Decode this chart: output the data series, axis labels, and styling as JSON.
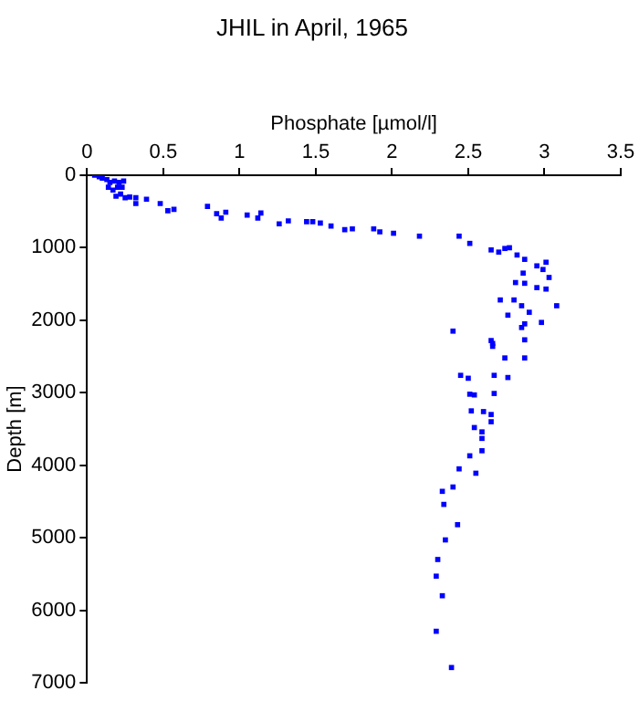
{
  "chart_data": {
    "type": "scatter",
    "title": "JHIL in April, 1965",
    "xlabel": "Phosphate [µmol/l]",
    "ylabel": "Depth [m]",
    "xlim": [
      0,
      3.5
    ],
    "xticks": [
      0,
      0.5,
      1,
      1.5,
      2,
      2.5,
      3,
      3.5
    ],
    "ylim": [
      7000,
      0
    ],
    "yticks": [
      0,
      1000,
      2000,
      3000,
      4000,
      5000,
      6000,
      7000
    ],
    "grid": false,
    "legend": false,
    "marker": "square",
    "series": [
      {
        "color": "#0000ff",
        "x": [
          0.05,
          0.08,
          0.1,
          0.13,
          0.15,
          0.18,
          0.21,
          0.24,
          0.14,
          0.17,
          0.2,
          0.23,
          0.19,
          0.22,
          0.25,
          0.28,
          0.32,
          0.32,
          0.39,
          0.48,
          0.53,
          0.57,
          0.79,
          0.85,
          0.88,
          0.91,
          1.05,
          1.12,
          1.14,
          1.26,
          1.32,
          1.44,
          1.48,
          1.53,
          1.6,
          1.69,
          1.74,
          1.88,
          1.92,
          2.01,
          2.18,
          2.44,
          2.51,
          2.65,
          2.7,
          2.74,
          2.77,
          2.82,
          2.87,
          3.01,
          2.95,
          2.99,
          2.86,
          3.03,
          2.81,
          2.87,
          2.95,
          3.01,
          2.71,
          2.8,
          2.85,
          2.9,
          3.08,
          2.76,
          2.98,
          2.87,
          2.85,
          2.4,
          2.65,
          2.66,
          2.66,
          2.87,
          2.74,
          2.87,
          2.45,
          2.5,
          2.67,
          2.76,
          2.51,
          2.54,
          2.67,
          2.52,
          2.6,
          2.65,
          2.65,
          2.54,
          2.59,
          2.59,
          2.59,
          2.51,
          2.44,
          2.55,
          2.4,
          2.33,
          2.34,
          2.43,
          2.35,
          2.3,
          2.29,
          2.33,
          2.29,
          2.39
        ],
        "values": [
          0,
          20,
          40,
          60,
          100,
          80,
          100,
          80,
          165,
          205,
          165,
          165,
          290,
          260,
          310,
          300,
          310,
          390,
          330,
          390,
          490,
          470,
          430,
          530,
          590,
          510,
          550,
          590,
          520,
          670,
          630,
          640,
          640,
          660,
          700,
          750,
          740,
          740,
          780,
          800,
          840,
          840,
          940,
          1030,
          1060,
          1010,
          1000,
          1100,
          1160,
          1200,
          1250,
          1300,
          1350,
          1410,
          1480,
          1490,
          1550,
          1570,
          1720,
          1720,
          1800,
          1890,
          1800,
          1930,
          2030,
          2050,
          2100,
          2150,
          2280,
          2320,
          2360,
          2270,
          2520,
          2520,
          2760,
          2800,
          2760,
          2790,
          3020,
          3030,
          3010,
          3250,
          3260,
          3300,
          3400,
          3480,
          3540,
          3630,
          3800,
          3870,
          4050,
          4110,
          4300,
          4360,
          4540,
          4820,
          5030,
          5300,
          5530,
          5800,
          6290,
          6790
        ]
      }
    ]
  }
}
